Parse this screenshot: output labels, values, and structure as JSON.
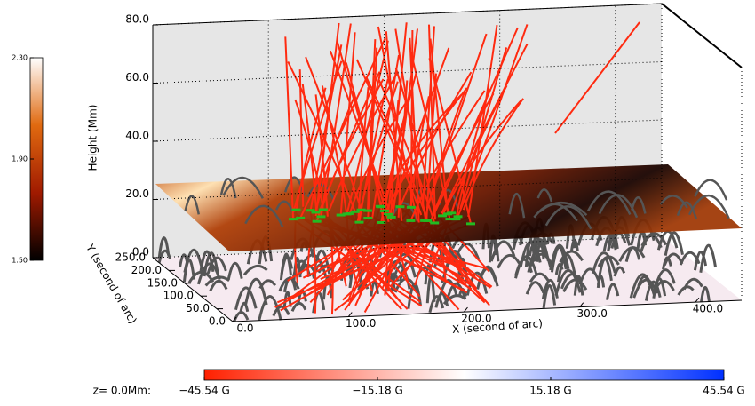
{
  "chart_data": {
    "type": "field-lines-3d",
    "xlabel": "X (second of arc)",
    "ylabel": "Y (second of arc)",
    "zlabel": "Height (Mm)",
    "xlim": [
      0,
      440
    ],
    "xticks": [
      {
        "value": 0,
        "label": "0.0"
      },
      {
        "value": 100,
        "label": "100.0"
      },
      {
        "value": 200,
        "label": "200.0"
      },
      {
        "value": 300,
        "label": "300.0"
      },
      {
        "value": 400,
        "label": "400.0"
      }
    ],
    "ylim": [
      0,
      250
    ],
    "yticks": [
      {
        "value": 0,
        "label": "0.0"
      },
      {
        "value": 50,
        "label": "50.0"
      },
      {
        "value": 100,
        "label": "100.0"
      },
      {
        "value": 150,
        "label": "150.0"
      },
      {
        "value": 200,
        "label": "200.0"
      },
      {
        "value": 250,
        "label": "250.0"
      }
    ],
    "zlim": [
      0,
      80
    ],
    "zticks": [
      {
        "value": 0,
        "label": "0.0"
      },
      {
        "value": 20,
        "label": "20.0"
      },
      {
        "value": 40,
        "label": "40.0"
      },
      {
        "value": 60,
        "label": "60.0"
      },
      {
        "value": 80,
        "label": "80.0"
      }
    ],
    "grid": true,
    "field_line_color": "#ff2a10",
    "loop_color": "#555555",
    "footpoint_color": "#22bb22",
    "intensity_colorbar": {
      "range": [
        1.5,
        2.3
      ],
      "ticks": [
        {
          "value": 1.5,
          "label": "1.50"
        },
        {
          "value": 1.9,
          "label": "1.90"
        },
        {
          "value": 2.3,
          "label": "2.30"
        }
      ],
      "colors": [
        "#000000",
        "#a01a00",
        "#e06a10",
        "#ffffff"
      ]
    },
    "field_colorbar": {
      "label": "z= 0.0Mm:",
      "range": [
        -45.54,
        45.54
      ],
      "ticks": [
        {
          "value": -45.54,
          "label": "−45.54 G"
        },
        {
          "value": -15.18,
          "label": "−15.18 G"
        },
        {
          "value": 15.18,
          "label": "15.18 G"
        },
        {
          "value": 45.54,
          "label": "45.54 G"
        }
      ],
      "colors": [
        "#ff2000",
        "#ffffff",
        "#0030ff"
      ]
    }
  }
}
